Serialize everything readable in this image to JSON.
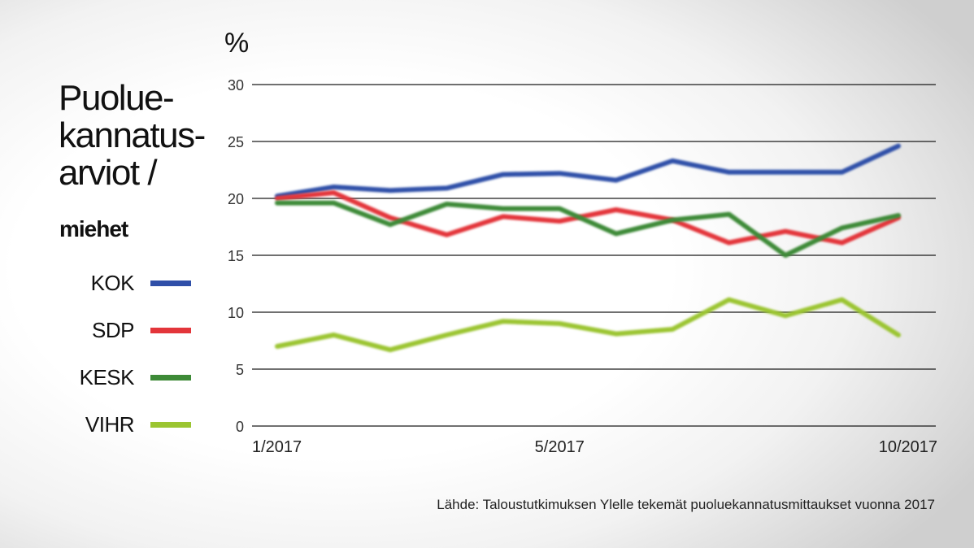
{
  "chart_data": {
    "type": "line",
    "title_lines": [
      "Puolue-",
      "kannatus-",
      "arviot /"
    ],
    "subtitle": "miehet",
    "ylabel": "%",
    "xlabel": "",
    "x_count": 12,
    "x_tick_labels": [
      {
        "index": 0,
        "label": "1/2017"
      },
      {
        "index": 5,
        "label": "5/2017"
      },
      {
        "index": 11,
        "label": "10/2017"
      }
    ],
    "y_ticks": [
      0,
      5,
      10,
      15,
      20,
      25,
      30
    ],
    "ylim": [
      0,
      30
    ],
    "grid": "horizontal",
    "legend_position": "left",
    "series": [
      {
        "name": "KOK",
        "color": "#2f4fa8",
        "values": [
          20.2,
          21.0,
          20.7,
          20.9,
          22.1,
          22.2,
          21.6,
          23.3,
          22.3,
          22.3,
          22.3,
          24.6
        ]
      },
      {
        "name": "SDP",
        "color": "#e3353a",
        "values": [
          20.0,
          20.5,
          18.3,
          16.8,
          18.4,
          18.0,
          19.0,
          18.1,
          16.1,
          17.1,
          16.1,
          18.3
        ]
      },
      {
        "name": "KESK",
        "color": "#3d8a37",
        "values": [
          19.6,
          19.6,
          17.7,
          19.5,
          19.1,
          19.1,
          16.9,
          18.1,
          18.6,
          15.0,
          17.4,
          18.5
        ]
      },
      {
        "name": "VIHR",
        "color": "#9bc531",
        "values": [
          7.0,
          8.0,
          6.7,
          8.0,
          9.2,
          9.0,
          8.1,
          8.5,
          11.1,
          9.7,
          11.1,
          8.0
        ]
      }
    ]
  },
  "source": "Lähde: Taloustutkimuksen Ylelle tekemät puoluekannatusmittaukset vuonna 2017"
}
